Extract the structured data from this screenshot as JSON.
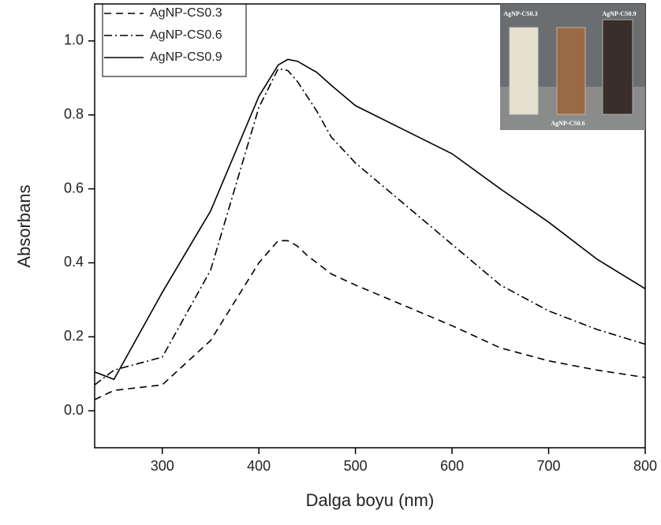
{
  "chart_data": {
    "type": "line",
    "xlabel": "Dalga boyu (nm)",
    "ylabel": "Absorbans",
    "x": [
      230,
      250,
      300,
      350,
      400,
      420,
      430,
      440,
      450,
      460,
      475,
      500,
      600,
      650,
      700,
      750,
      800
    ],
    "series": [
      {
        "name": "AgNP-CS0.3",
        "color": "#000000",
        "linestyle": "dashed",
        "values": [
          0.03,
          0.055,
          0.07,
          0.19,
          0.4,
          0.46,
          0.46,
          0.445,
          0.42,
          0.4,
          0.37,
          0.34,
          0.23,
          0.17,
          0.135,
          0.11,
          0.09
        ]
      },
      {
        "name": "AgNP-CS0.6",
        "color": "#000000",
        "linestyle": "dashdot",
        "values": [
          0.07,
          0.11,
          0.145,
          0.38,
          0.82,
          0.925,
          0.92,
          0.89,
          0.85,
          0.81,
          0.74,
          0.67,
          0.45,
          0.34,
          0.27,
          0.22,
          0.18
        ]
      },
      {
        "name": "AgNP-CS0.9",
        "color": "#000000",
        "linestyle": "solid",
        "values": [
          0.105,
          0.085,
          0.32,
          0.54,
          0.85,
          0.935,
          0.95,
          0.945,
          0.93,
          0.915,
          0.88,
          0.825,
          0.695,
          0.6,
          0.51,
          0.41,
          0.33
        ]
      }
    ],
    "xlim": [
      230,
      800
    ],
    "xticks": [
      300,
      400,
      500,
      600,
      700,
      800
    ],
    "ylim": [
      -0.1,
      1.1
    ],
    "yticks": [
      {
        "value": 0,
        "label": "0.0"
      },
      0.2,
      0.4,
      0.6,
      0.8,
      {
        "value": 1,
        "label": "1.0"
      }
    ],
    "legend": "upper left",
    "inset": {
      "labels": [
        "AgNP-CS0.3",
        "AgNP-CS0.9",
        "AgNP-CS0.6"
      ]
    }
  }
}
